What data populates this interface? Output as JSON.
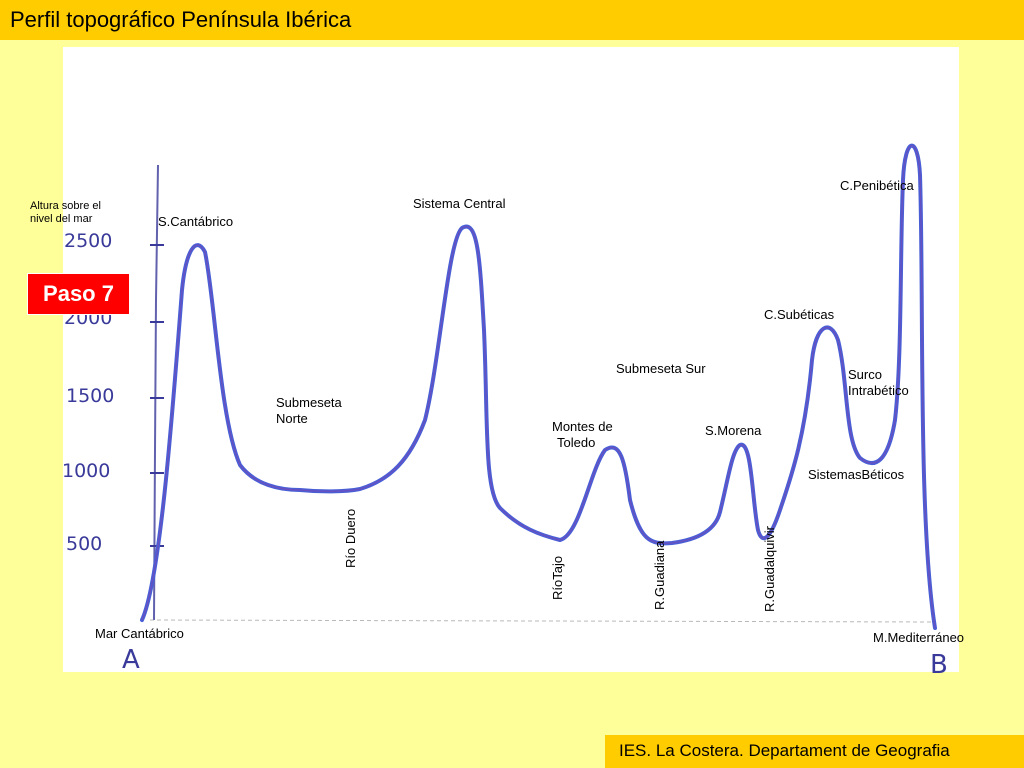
{
  "title": "Perfil topográfico Península Ibérica",
  "badge": "Paso 7",
  "footer": "IES. La Costera. Departament de Geografia",
  "axis_title": [
    "Altura sobre el",
    "nivel del mar"
  ],
  "y_ticks": [
    "2500",
    "2000",
    "1500",
    "1000",
    "500"
  ],
  "endpoints": {
    "start": "A",
    "end": "B"
  },
  "labels": {
    "s_cantabrico": "S.Cantábrico",
    "sistema_central": "Sistema Central",
    "c_penibetica": "C.Penibética",
    "c_subbeticas": "C.Subéticas",
    "submeseta_sur": "Submeseta Sur",
    "surco_1": "Surco",
    "surco_2": "Intrabético",
    "submeseta_norte_1": "Submeseta",
    "submeseta_norte_2": "Norte",
    "montes_1": "Montes de",
    "montes_2": "Toledo",
    "s_morena": "S.Morena",
    "sistemas_beticos": "SistemasBéticos",
    "rio_duero": "Río Duero",
    "rio_tajo": "RíoTajo",
    "r_guadiana": "R.Guadiana",
    "r_guadalquivir": "R.Guadalquivir",
    "mar_cantabrico": "Mar Cantábrico",
    "m_mediterraneo": "M.Mediterráneo"
  },
  "colors": {
    "title_bar": "#ffcc00",
    "background": "#ffff99",
    "badge": "#ff0000",
    "profile": "#4a5fd6"
  }
}
